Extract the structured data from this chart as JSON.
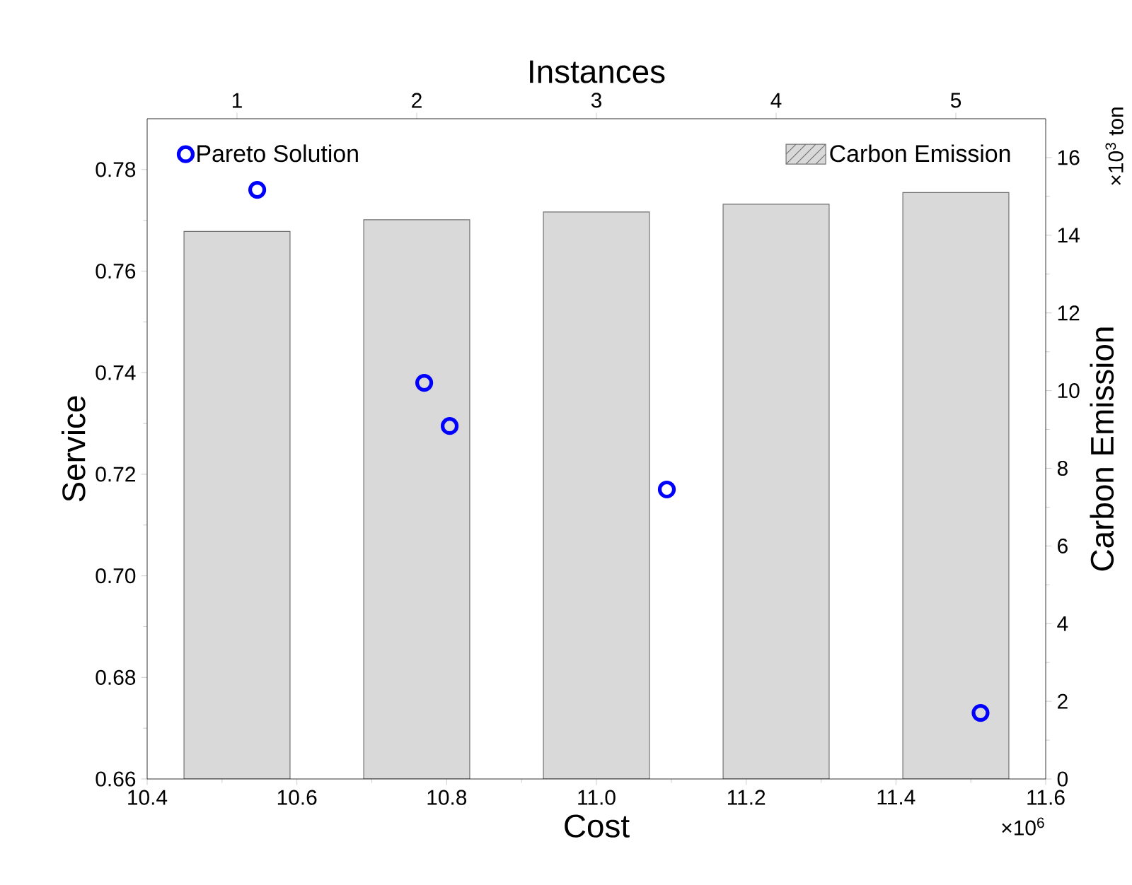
{
  "chart_data": {
    "type": "scatter",
    "xlabel": "Cost",
    "ylabel": "Service",
    "y2label": "Carbon Emission",
    "x2label": "Instances",
    "xlim": [
      10.4,
      11.6
    ],
    "xticks": [
      10.4,
      10.6,
      10.8,
      {
        "value": 11,
        "label": "11.0"
      },
      11.2,
      11.4,
      11.6
    ],
    "ylim": [
      0.66,
      0.79
    ],
    "yticks": [
      0.66,
      0.68,
      {
        "value": 0.7,
        "label": "0.70"
      },
      0.72,
      0.74,
      0.76,
      0.78
    ],
    "y2lim": [
      0,
      17
    ],
    "y2ticks": [
      0,
      2,
      4,
      6,
      8,
      10,
      12,
      14,
      16
    ],
    "x2lim": [
      0.5,
      5.5
    ],
    "x2ticks": [
      1,
      2,
      3,
      4,
      5
    ],
    "legend": "top",
    "marker": "circle",
    "grid": false,
    "annotations": [
      "×10$^{6}$",
      "×10$^{3}$ ton"
    ],
    "series": [
      {
        "name": "Pareto Solution",
        "color": "#0000ff",
        "x": [
          10.547,
          10.77,
          10.804,
          11.094,
          11.513
        ],
        "values": [
          0.776,
          0.738,
          0.7295,
          0.717,
          0.673
        ]
      },
      {
        "name": "Carbon Emission",
        "type": "bar",
        "axis": "y2",
        "color": "#d9d9d9",
        "x": [
          10.52,
          10.76,
          11.0,
          11.24,
          11.48
        ],
        "values": [
          14.1,
          14.4,
          14.6,
          14.8,
          15.1
        ]
      }
    ]
  }
}
